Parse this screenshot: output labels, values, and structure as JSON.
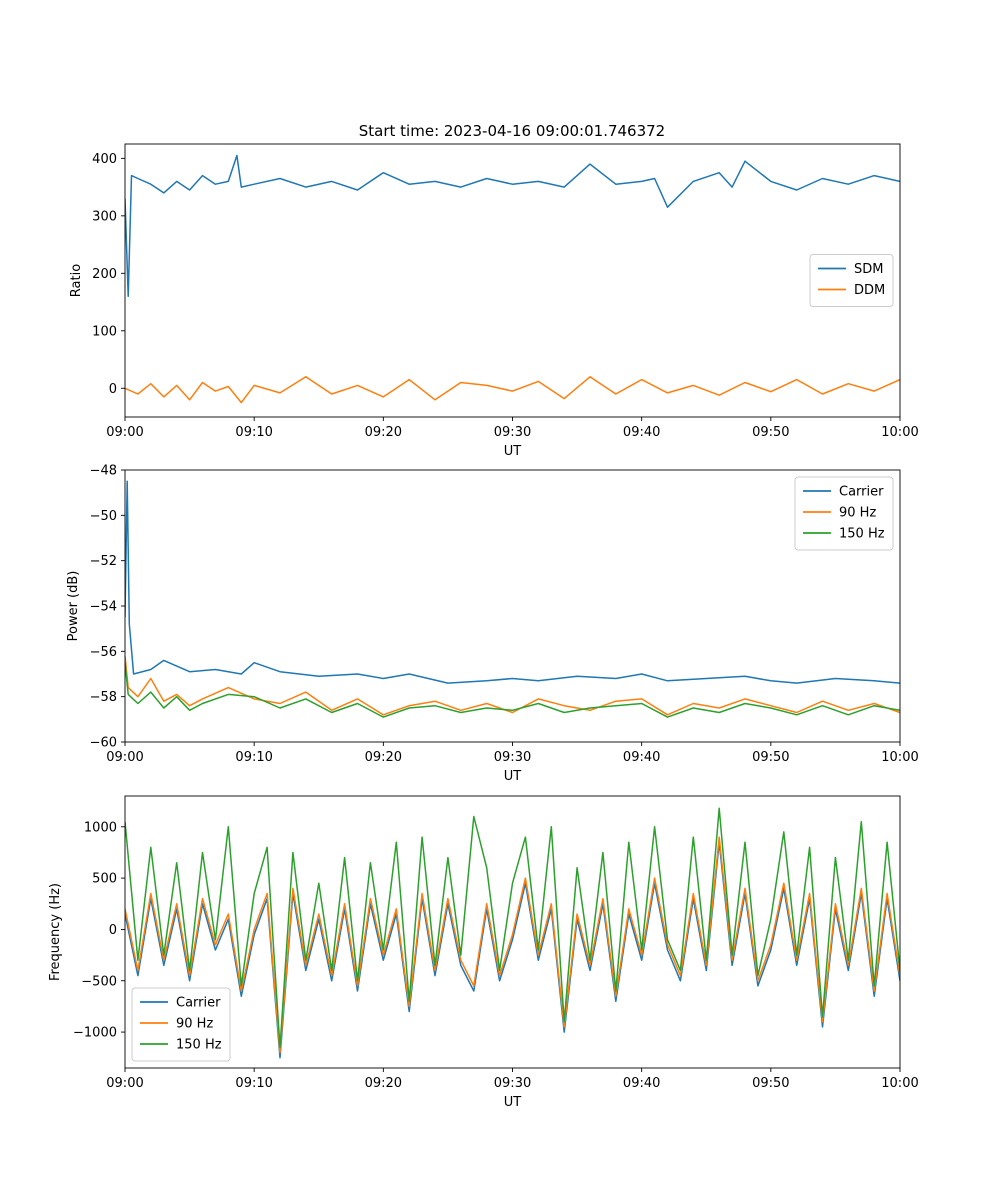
{
  "figure_title": "Start time: 2023-04-16 09:00:01.746372",
  "colors": {
    "blue": "#1f77b4",
    "orange": "#ff7f0e",
    "green": "#2ca02c"
  },
  "chart_data": [
    {
      "type": "line",
      "xlabel": "UT",
      "ylabel": "Ratio",
      "xlim": [
        "09:00",
        "10:00"
      ],
      "ylim": [
        -50,
        425
      ],
      "xticks": [
        "09:00",
        "09:10",
        "09:20",
        "09:30",
        "09:40",
        "09:50",
        "10:00"
      ],
      "yticks": [
        0,
        100,
        200,
        300,
        400
      ],
      "legend_position": "center-right",
      "series": [
        {
          "name": "SDM",
          "color": "#1f77b4",
          "x": [
            "09:00",
            "09:00:15",
            "09:00:30",
            "09:01",
            "09:02",
            "09:03",
            "09:04",
            "09:05",
            "09:06",
            "09:07",
            "09:08",
            "09:08:40",
            "09:09",
            "09:10",
            "09:12",
            "09:14",
            "09:16",
            "09:18",
            "09:20",
            "09:22",
            "09:24",
            "09:26",
            "09:28",
            "09:30",
            "09:32",
            "09:34",
            "09:36",
            "09:38",
            "09:40",
            "09:41",
            "09:42",
            "09:44",
            "09:46",
            "09:47",
            "09:48",
            "09:50",
            "09:52",
            "09:54",
            "09:56",
            "09:58",
            "10:00"
          ],
          "values": [
            330,
            160,
            370,
            365,
            355,
            340,
            360,
            345,
            370,
            355,
            360,
            405,
            350,
            355,
            365,
            350,
            360,
            345,
            375,
            355,
            360,
            350,
            365,
            355,
            360,
            350,
            390,
            355,
            360,
            365,
            315,
            360,
            375,
            350,
            395,
            360,
            345,
            365,
            355,
            370,
            360
          ]
        },
        {
          "name": "DDM",
          "color": "#ff7f0e",
          "x": [
            "09:00",
            "09:01",
            "09:02",
            "09:03",
            "09:04",
            "09:05",
            "09:06",
            "09:07",
            "09:08",
            "09:09",
            "09:10",
            "09:12",
            "09:14",
            "09:16",
            "09:18",
            "09:20",
            "09:22",
            "09:24",
            "09:26",
            "09:28",
            "09:30",
            "09:32",
            "09:34",
            "09:36",
            "09:38",
            "09:40",
            "09:42",
            "09:44",
            "09:46",
            "09:48",
            "09:50",
            "09:52",
            "09:54",
            "09:56",
            "09:58",
            "10:00"
          ],
          "values": [
            0,
            -10,
            8,
            -15,
            5,
            -20,
            10,
            -5,
            3,
            -25,
            5,
            -8,
            20,
            -10,
            5,
            -15,
            15,
            -20,
            10,
            5,
            -5,
            12,
            -18,
            20,
            -10,
            15,
            -8,
            5,
            -12,
            10,
            -6,
            15,
            -10,
            8,
            -5,
            15
          ]
        }
      ]
    },
    {
      "type": "line",
      "xlabel": "UT",
      "ylabel": "Power (dB)",
      "xlim": [
        "09:00",
        "10:00"
      ],
      "ylim": [
        -60,
        -48
      ],
      "xticks": [
        "09:00",
        "09:10",
        "09:20",
        "09:30",
        "09:40",
        "09:50",
        "10:00"
      ],
      "yticks": [
        -60,
        -58,
        -56,
        -54,
        -52,
        -50,
        -48
      ],
      "legend_position": "top-right",
      "series": [
        {
          "name": "Carrier",
          "color": "#1f77b4",
          "x": [
            "09:00",
            "09:00:10",
            "09:00:20",
            "09:00:40",
            "09:02",
            "09:03",
            "09:05",
            "09:07",
            "09:09",
            "09:10",
            "09:12",
            "09:15",
            "09:18",
            "09:20",
            "09:22",
            "09:25",
            "09:28",
            "09:30",
            "09:32",
            "09:35",
            "09:38",
            "09:40",
            "09:42",
            "09:45",
            "09:48",
            "09:50",
            "09:52",
            "09:55",
            "09:58",
            "10:00"
          ],
          "values": [
            -54.5,
            -48.5,
            -54.8,
            -57.0,
            -56.8,
            -56.4,
            -56.9,
            -56.8,
            -57.0,
            -56.5,
            -56.9,
            -57.1,
            -57.0,
            -57.2,
            -57.0,
            -57.4,
            -57.3,
            -57.2,
            -57.3,
            -57.1,
            -57.2,
            -57.0,
            -57.3,
            -57.2,
            -57.1,
            -57.3,
            -57.4,
            -57.2,
            -57.3,
            -57.4
          ]
        },
        {
          "name": "90 Hz",
          "color": "#ff7f0e",
          "x": [
            "09:00",
            "09:00:15",
            "09:01",
            "09:02",
            "09:03",
            "09:04",
            "09:05",
            "09:06",
            "09:08",
            "09:10",
            "09:12",
            "09:14",
            "09:16",
            "09:18",
            "09:20",
            "09:22",
            "09:24",
            "09:26",
            "09:28",
            "09:30",
            "09:32",
            "09:34",
            "09:36",
            "09:38",
            "09:40",
            "09:42",
            "09:44",
            "09:46",
            "09:48",
            "09:50",
            "09:52",
            "09:54",
            "09:56",
            "09:58",
            "10:00"
          ],
          "values": [
            -56.2,
            -57.6,
            -58.0,
            -57.2,
            -58.2,
            -57.9,
            -58.4,
            -58.1,
            -57.6,
            -58.1,
            -58.3,
            -57.8,
            -58.6,
            -58.1,
            -58.8,
            -58.4,
            -58.2,
            -58.6,
            -58.3,
            -58.7,
            -58.1,
            -58.4,
            -58.6,
            -58.2,
            -58.1,
            -58.8,
            -58.3,
            -58.5,
            -58.1,
            -58.4,
            -58.7,
            -58.2,
            -58.6,
            -58.3,
            -58.7
          ]
        },
        {
          "name": "150 Hz",
          "color": "#2ca02c",
          "x": [
            "09:00",
            "09:00:15",
            "09:01",
            "09:02",
            "09:03",
            "09:04",
            "09:05",
            "09:06",
            "09:08",
            "09:10",
            "09:12",
            "09:14",
            "09:16",
            "09:18",
            "09:20",
            "09:22",
            "09:24",
            "09:26",
            "09:28",
            "09:30",
            "09:32",
            "09:34",
            "09:36",
            "09:38",
            "09:40",
            "09:42",
            "09:44",
            "09:46",
            "09:48",
            "09:50",
            "09:52",
            "09:54",
            "09:56",
            "09:58",
            "10:00"
          ],
          "values": [
            -56.5,
            -57.9,
            -58.3,
            -57.8,
            -58.5,
            -58.0,
            -58.6,
            -58.3,
            -57.9,
            -58.0,
            -58.5,
            -58.1,
            -58.7,
            -58.3,
            -58.9,
            -58.5,
            -58.4,
            -58.7,
            -58.5,
            -58.6,
            -58.3,
            -58.7,
            -58.5,
            -58.4,
            -58.3,
            -58.9,
            -58.5,
            -58.7,
            -58.3,
            -58.5,
            -58.8,
            -58.4,
            -58.8,
            -58.4,
            -58.6
          ]
        }
      ]
    },
    {
      "type": "line",
      "xlabel": "UT",
      "ylabel": "Frequency (Hz)",
      "xlim": [
        "09:00",
        "10:00"
      ],
      "ylim": [
        -1350,
        1300
      ],
      "xticks": [
        "09:00",
        "09:10",
        "09:20",
        "09:30",
        "09:40",
        "09:50",
        "10:00"
      ],
      "yticks": [
        -1000,
        -500,
        0,
        500,
        1000
      ],
      "legend_position": "lower-left",
      "series": [
        {
          "name": "Carrier",
          "color": "#1f77b4",
          "x": [
            "09:00",
            "09:01",
            "09:02",
            "09:03",
            "09:04",
            "09:05",
            "09:06",
            "09:07",
            "09:08",
            "09:09",
            "09:10",
            "09:11",
            "09:12",
            "09:13",
            "09:14",
            "09:15",
            "09:16",
            "09:17",
            "09:18",
            "09:19",
            "09:20",
            "09:21",
            "09:22",
            "09:23",
            "09:24",
            "09:25",
            "09:26",
            "09:27",
            "09:28",
            "09:29",
            "09:30",
            "09:31",
            "09:32",
            "09:33",
            "09:34",
            "09:35",
            "09:36",
            "09:37",
            "09:38",
            "09:39",
            "09:40",
            "09:41",
            "09:42",
            "09:43",
            "09:44",
            "09:45",
            "09:46",
            "09:47",
            "09:48",
            "09:49",
            "09:50",
            "09:51",
            "09:52",
            "09:53",
            "09:54",
            "09:55",
            "09:56",
            "09:57",
            "09:58",
            "09:59",
            "10:00"
          ],
          "values": [
            150,
            -450,
            300,
            -350,
            200,
            -500,
            250,
            -200,
            100,
            -650,
            -50,
            300,
            -1250,
            350,
            -400,
            100,
            -500,
            200,
            -600,
            250,
            -300,
            150,
            -800,
            300,
            -450,
            250,
            -350,
            -600,
            200,
            -500,
            -100,
            450,
            -300,
            200,
            -1000,
            100,
            -400,
            250,
            -700,
            150,
            -300,
            450,
            -200,
            -500,
            300,
            -400,
            850,
            -350,
            350,
            -550,
            -200,
            400,
            -350,
            300,
            -950,
            200,
            -400,
            350,
            -650,
            300,
            -500
          ]
        },
        {
          "name": "90 Hz",
          "color": "#ff7f0e",
          "x": [
            "09:00",
            "09:01",
            "09:02",
            "09:03",
            "09:04",
            "09:05",
            "09:06",
            "09:07",
            "09:08",
            "09:09",
            "09:10",
            "09:11",
            "09:12",
            "09:13",
            "09:14",
            "09:15",
            "09:16",
            "09:17",
            "09:18",
            "09:19",
            "09:20",
            "09:21",
            "09:22",
            "09:23",
            "09:24",
            "09:25",
            "09:26",
            "09:27",
            "09:28",
            "09:29",
            "09:30",
            "09:31",
            "09:32",
            "09:33",
            "09:34",
            "09:35",
            "09:36",
            "09:37",
            "09:38",
            "09:39",
            "09:40",
            "09:41",
            "09:42",
            "09:43",
            "09:44",
            "09:45",
            "09:46",
            "09:47",
            "09:48",
            "09:49",
            "09:50",
            "09:51",
            "09:52",
            "09:53",
            "09:54",
            "09:55",
            "09:56",
            "09:57",
            "09:58",
            "09:59",
            "10:00"
          ],
          "values": [
            200,
            -400,
            350,
            -300,
            250,
            -450,
            300,
            -150,
            150,
            -600,
            0,
            350,
            -1200,
            400,
            -350,
            150,
            -450,
            250,
            -550,
            300,
            -250,
            200,
            -750,
            350,
            -400,
            300,
            -300,
            -550,
            250,
            -450,
            -50,
            500,
            -250,
            250,
            -950,
            150,
            -350,
            300,
            -650,
            200,
            -250,
            500,
            -150,
            -450,
            350,
            -350,
            900,
            -300,
            400,
            -500,
            -150,
            450,
            -300,
            350,
            -900,
            250,
            -350,
            400,
            -600,
            350,
            -450
          ]
        },
        {
          "name": "150 Hz",
          "color": "#2ca02c",
          "x": [
            "09:00",
            "09:01",
            "09:02",
            "09:03",
            "09:04",
            "09:05",
            "09:06",
            "09:07",
            "09:08",
            "09:09",
            "09:10",
            "09:11",
            "09:12",
            "09:13",
            "09:14",
            "09:15",
            "09:16",
            "09:17",
            "09:18",
            "09:19",
            "09:20",
            "09:21",
            "09:22",
            "09:23",
            "09:24",
            "09:25",
            "09:26",
            "09:27",
            "09:28",
            "09:29",
            "09:30",
            "09:31",
            "09:32",
            "09:33",
            "09:34",
            "09:35",
            "09:36",
            "09:37",
            "09:38",
            "09:39",
            "09:40",
            "09:41",
            "09:42",
            "09:43",
            "09:44",
            "09:45",
            "09:46",
            "09:47",
            "09:48",
            "09:49",
            "09:50",
            "09:51",
            "09:52",
            "09:53",
            "09:54",
            "09:55",
            "09:56",
            "09:57",
            "09:58",
            "09:59",
            "10:00"
          ],
          "values": [
            1050,
            -300,
            800,
            -250,
            650,
            -400,
            750,
            -100,
            1000,
            -550,
            350,
            800,
            -1150,
            750,
            -300,
            450,
            -400,
            700,
            -500,
            650,
            -200,
            850,
            -700,
            900,
            -350,
            700,
            -250,
            1100,
            600,
            -400,
            450,
            900,
            -200,
            1000,
            -900,
            600,
            -300,
            750,
            -600,
            850,
            -200,
            1000,
            -100,
            -400,
            900,
            -300,
            1180,
            -250,
            850,
            -450,
            100,
            950,
            -250,
            800,
            -850,
            700,
            -300,
            1050,
            -550,
            850,
            -400
          ]
        }
      ]
    }
  ]
}
